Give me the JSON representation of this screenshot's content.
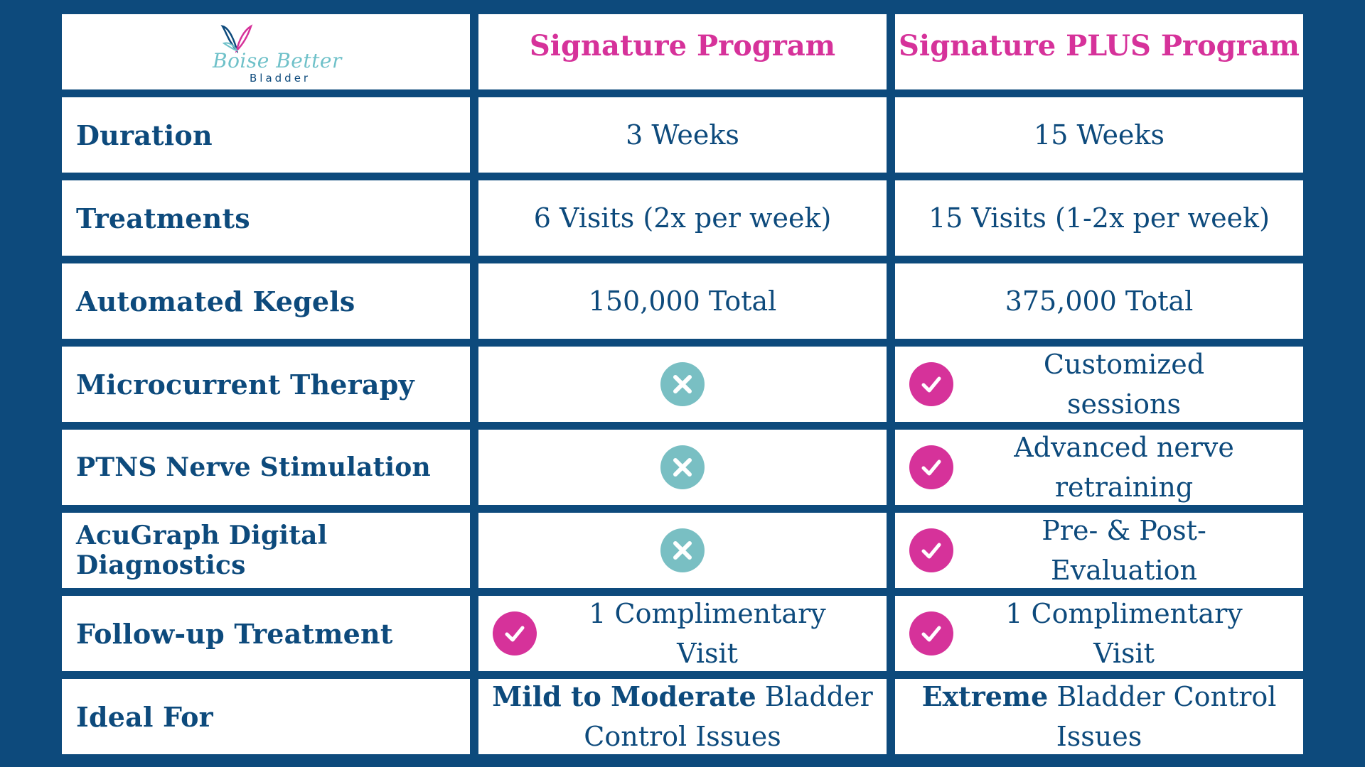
{
  "logo": {
    "script_text": "Boise Better",
    "sub_text": "Bladder"
  },
  "columns": {
    "signature": "Signature Program",
    "signature_plus": "Signature PLUS Program"
  },
  "rows": {
    "duration": {
      "label": "Duration",
      "signature": "3 Weeks",
      "signature_plus": "15 Weeks"
    },
    "treatments": {
      "label": "Treatments",
      "signature": "6 Visits (2x per week)",
      "signature_plus": "15 Visits (1-2x per week)"
    },
    "kegels": {
      "label": "Automated Kegels",
      "signature": "150,000 Total",
      "signature_plus": "375,000 Total"
    },
    "microcurrent": {
      "label": "Microcurrent Therapy",
      "signature_icon": "x-icon",
      "signature_plus_icon": "check-icon",
      "signature_plus_line1": "Customized",
      "signature_plus_line2": "sessions"
    },
    "ptns": {
      "label": "PTNS Nerve Stimulation",
      "signature_icon": "x-icon",
      "signature_plus_icon": "check-icon",
      "signature_plus_line1": "Advanced nerve",
      "signature_plus_line2": "retraining"
    },
    "acugraph": {
      "label": "AcuGraph Digital Diagnostics",
      "signature_icon": "x-icon",
      "signature_plus_icon": "check-icon",
      "signature_plus_line1": "Pre- & Post-",
      "signature_plus_line2": "Evaluation"
    },
    "followup": {
      "label": "Follow-up Treatment",
      "signature_icon": "check-icon",
      "signature_line1": "1 Complimentary",
      "signature_line2": "Visit",
      "signature_plus_icon": "check-icon",
      "signature_plus_line1": "1 Complimentary",
      "signature_plus_line2": "Visit"
    },
    "ideal": {
      "label": "Ideal For",
      "signature_bold": "Mild to Moderate",
      "signature_rest1": " Bladder",
      "signature_rest2": "Control Issues",
      "signature_plus_bold": "Extreme",
      "signature_plus_rest1": " Bladder Control",
      "signature_plus_rest2": "Issues"
    }
  },
  "colors": {
    "background": "#0d4a7c",
    "cell": "#ffffff",
    "text": "#0d4a7c",
    "heading_accent": "#d6329a",
    "check_circle": "#d6329a",
    "x_circle": "#79bfc3",
    "logo_script": "#6fc1c9"
  }
}
